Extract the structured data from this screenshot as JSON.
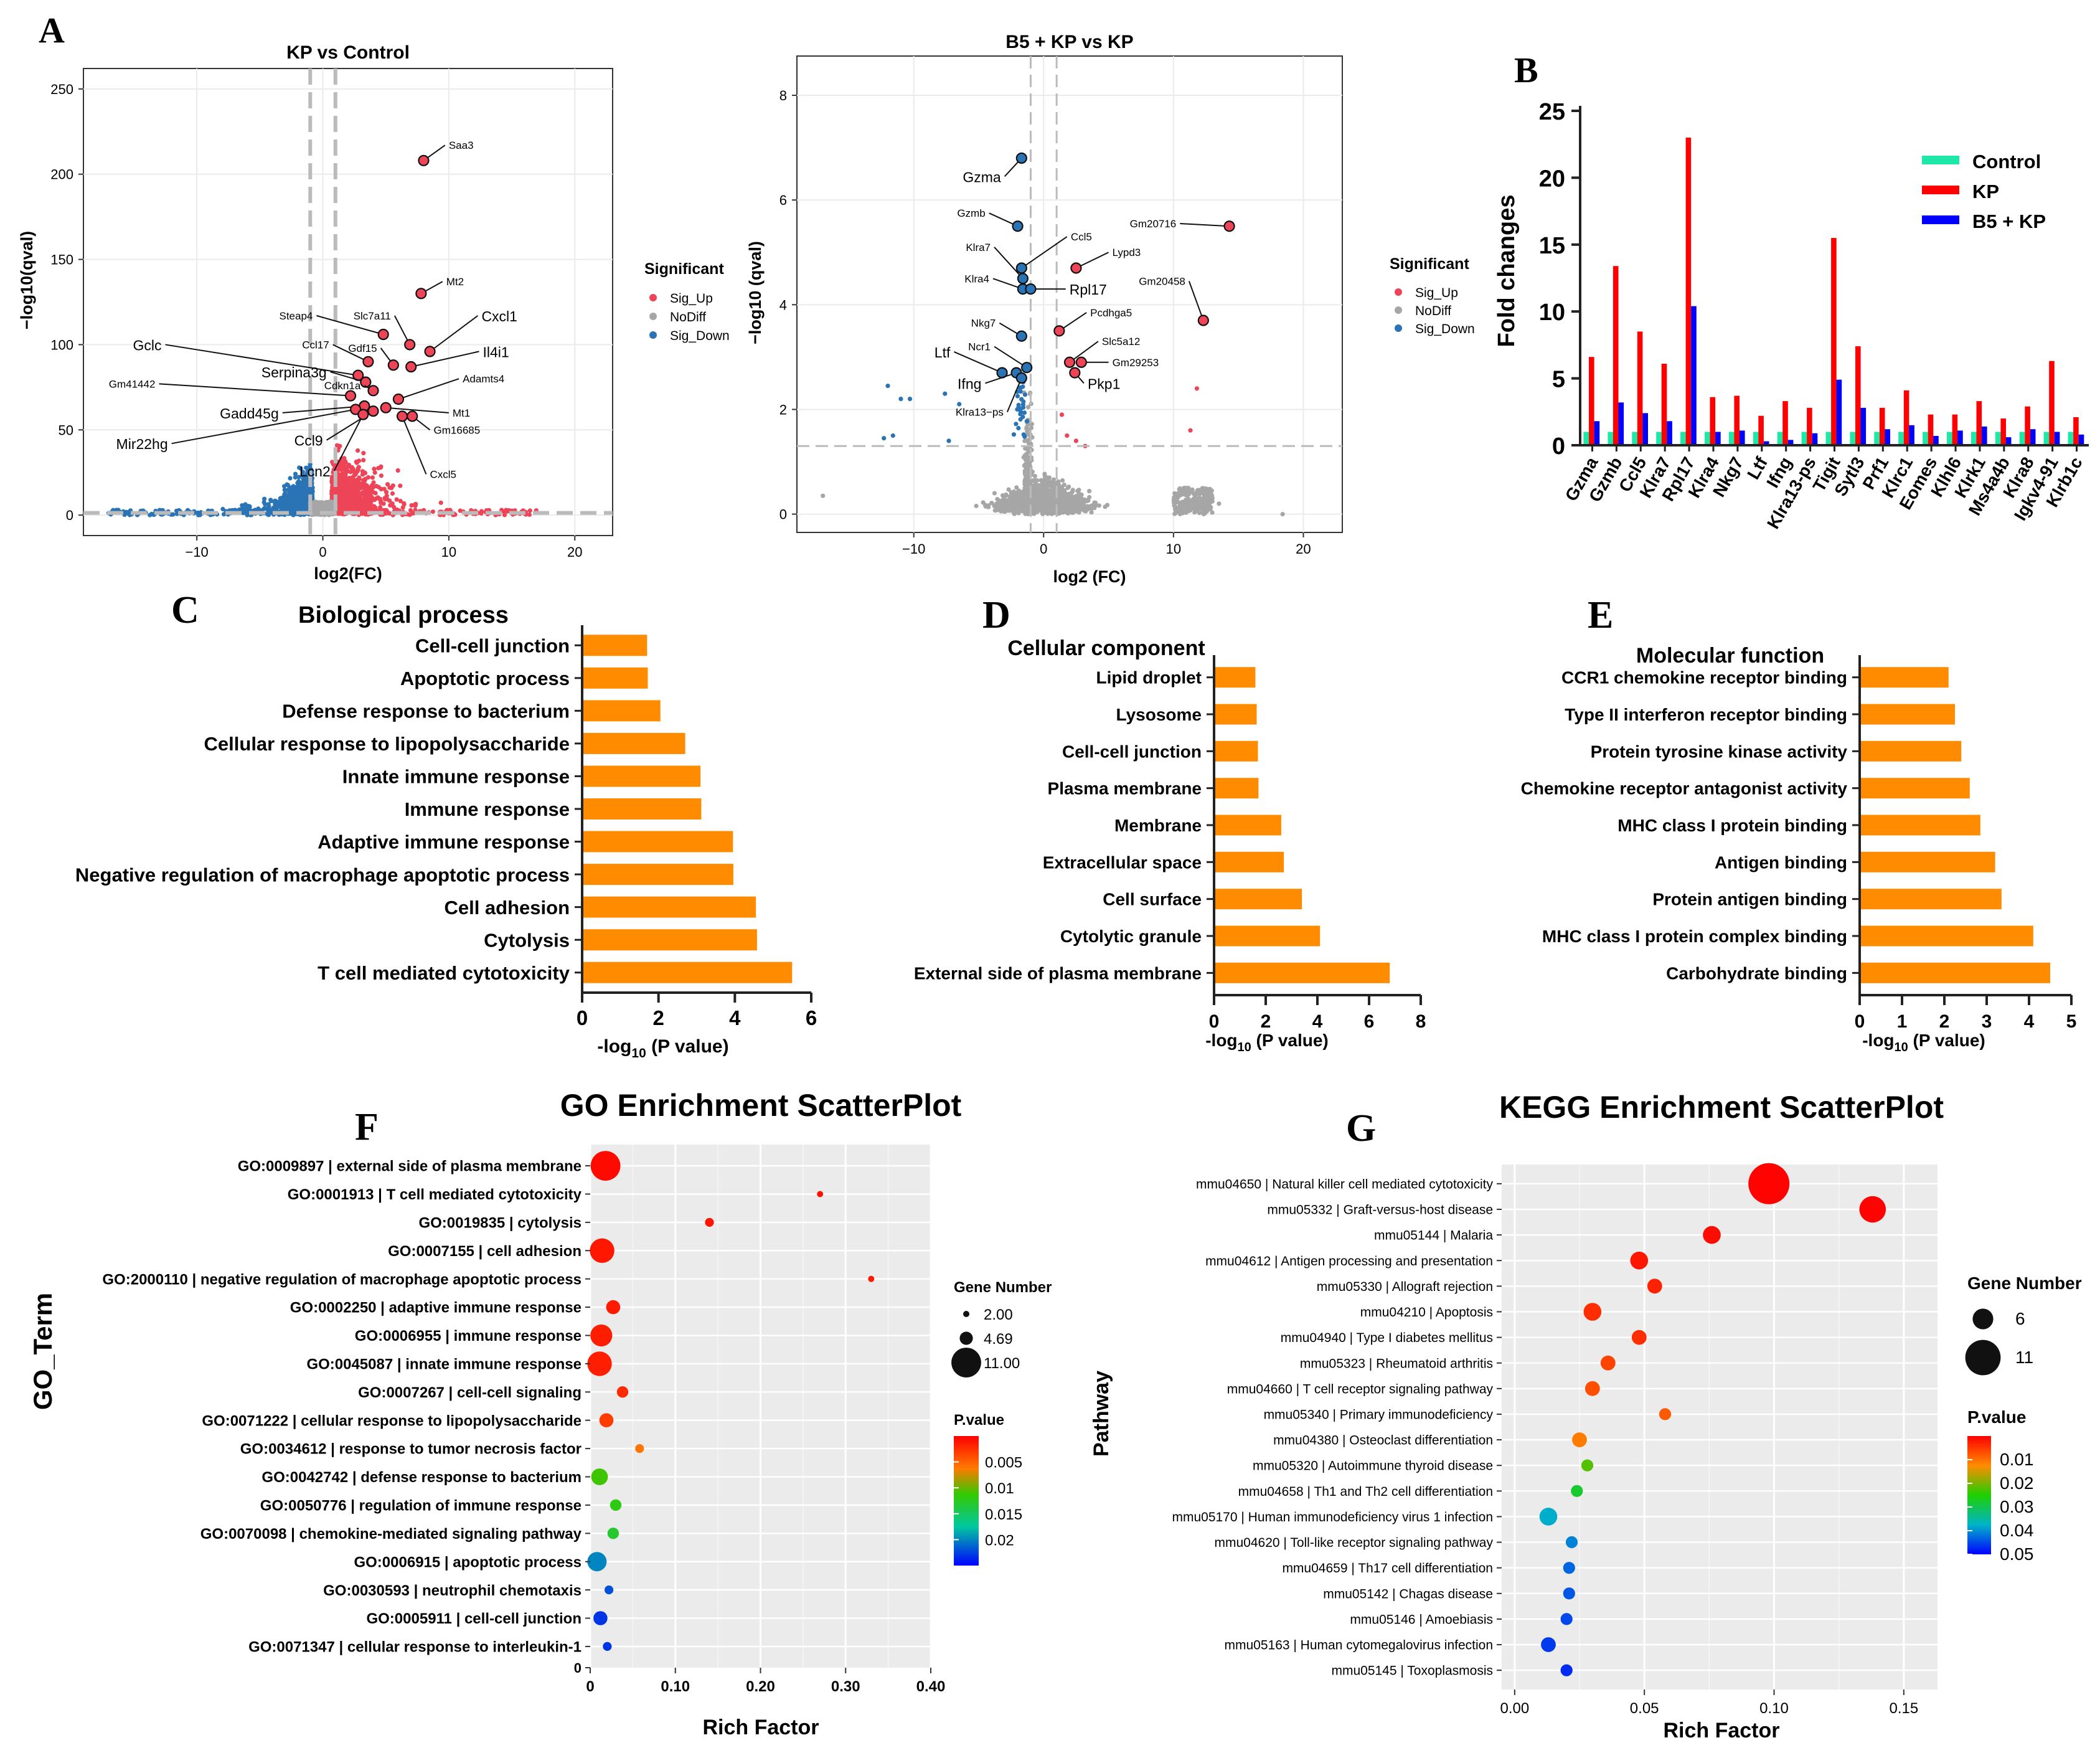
{
  "panel_letters": {
    "A": "A",
    "B": "B",
    "C": "C",
    "D": "D",
    "E": "E",
    "F": "F",
    "G": "G"
  },
  "colors": {
    "up": "#ee4457",
    "down": "#2a74b5",
    "nodiff": "#a6a6a6",
    "bar": "#ff8c00",
    "control": "#1ee8a8",
    "kp": "#ff0000",
    "b5kp": "#0000ff"
  },
  "chart_data": [
    {
      "id": "volcano1",
      "type": "scatter",
      "title": "KP vs Control",
      "xlabel": "log2(FC)",
      "ylabel": "−log10(qval)",
      "xlim": [
        -19,
        23
      ],
      "ylim": [
        -12,
        262
      ],
      "xticks": [
        -10,
        0,
        10,
        20
      ],
      "yticks": [
        0,
        50,
        100,
        150,
        200,
        250
      ],
      "fc_threshold": [
        -1,
        1
      ],
      "q_threshold": 1.3,
      "legend": {
        "title": "Significant",
        "entries": [
          "Sig_Up",
          "NoDiff",
          "Sig_Down"
        ]
      },
      "labels": [
        {
          "text": "Saa3",
          "x": 8.0,
          "y": 208,
          "lx": 9.7,
          "ly": 217,
          "big": false
        },
        {
          "text": "Mt2",
          "x": 7.8,
          "y": 130,
          "lx": 9.5,
          "ly": 137,
          "big": false
        },
        {
          "text": "Steap4",
          "x": 4.8,
          "y": 106,
          "lx": -0.5,
          "ly": 117,
          "big": false
        },
        {
          "text": "Slc7a11",
          "x": 6.9,
          "y": 100,
          "lx": 5.7,
          "ly": 117,
          "big": false
        },
        {
          "text": "Cxcl1",
          "x": 8.5,
          "y": 96,
          "lx": 12.3,
          "ly": 117,
          "big": true
        },
        {
          "text": "Ccl17",
          "x": 3.6,
          "y": 90,
          "lx": 0.8,
          "ly": 100,
          "big": false
        },
        {
          "text": "Gdf15",
          "x": 5.6,
          "y": 88,
          "lx": 4.6,
          "ly": 98,
          "big": false
        },
        {
          "text": "Il4i1",
          "x": 7.0,
          "y": 87,
          "lx": 12.4,
          "ly": 96,
          "big": true
        },
        {
          "text": "Gclc",
          "x": 2.8,
          "y": 82,
          "lx": -12.5,
          "ly": 100,
          "big": true
        },
        {
          "text": "Serpina3g",
          "x": 3.4,
          "y": 78,
          "lx": 0.6,
          "ly": 84,
          "big": true
        },
        {
          "text": "Cdkn1a",
          "x": 4.0,
          "y": 73,
          "lx": 3.3,
          "ly": 76,
          "big": false
        },
        {
          "text": "Gm41442",
          "x": 2.2,
          "y": 70,
          "lx": -13.0,
          "ly": 77,
          "big": false
        },
        {
          "text": "Adamts4",
          "x": 6.0,
          "y": 68,
          "lx": 10.8,
          "ly": 80,
          "big": false
        },
        {
          "text": "Gadd45g",
          "x": 3.3,
          "y": 64,
          "lx": -3.2,
          "ly": 60,
          "big": true
        },
        {
          "text": "Mt1",
          "x": 5.0,
          "y": 63,
          "lx": 10.0,
          "ly": 60,
          "big": false
        },
        {
          "text": "Gm16685",
          "x": 7.1,
          "y": 58,
          "lx": 8.5,
          "ly": 50,
          "big": false
        },
        {
          "text": "Mir22hg",
          "x": 2.6,
          "y": 62,
          "lx": -12.0,
          "ly": 42,
          "big": true
        },
        {
          "text": "Ccl9",
          "x": 4.0,
          "y": 61,
          "lx": 0.3,
          "ly": 44,
          "big": true
        },
        {
          "text": "Lcn2",
          "x": 3.2,
          "y": 59,
          "lx": 0.9,
          "ly": 26,
          "big": true
        },
        {
          "text": "Cxcl5",
          "x": 6.3,
          "y": 58,
          "lx": 8.2,
          "ly": 24,
          "big": false
        }
      ]
    },
    {
      "id": "volcano2",
      "type": "scatter",
      "title": "B5 + KP vs KP",
      "xlabel": "log2 (FC)",
      "ylabel": "−log10 (qval)",
      "xlim": [
        -19,
        23
      ],
      "ylim": [
        -0.35,
        8.75
      ],
      "xticks": [
        -10,
        0,
        10,
        20
      ],
      "yticks": [
        0,
        2,
        4,
        6,
        8
      ],
      "fc_threshold": [
        -1,
        1
      ],
      "q_threshold": 1.3,
      "legend": {
        "title": "Significant",
        "entries": [
          "Sig_Up",
          "NoDiff",
          "Sig_Down"
        ]
      },
      "labels": [
        {
          "text": "Gzma",
          "x": -1.7,
          "y": 6.8,
          "lx": -3.0,
          "ly": 6.45,
          "big": true
        },
        {
          "text": "Gm20716",
          "x": 14.3,
          "y": 5.5,
          "lx": 10.5,
          "ly": 5.55,
          "big": false
        },
        {
          "text": "Gzmb",
          "x": -2.0,
          "y": 5.5,
          "lx": -4.2,
          "ly": 5.75,
          "big": false
        },
        {
          "text": "Ccl5",
          "x": -1.7,
          "y": 4.7,
          "lx": 1.8,
          "ly": 5.3,
          "big": false
        },
        {
          "text": "Lypd3",
          "x": 2.5,
          "y": 4.7,
          "lx": 5.0,
          "ly": 5.0,
          "big": false
        },
        {
          "text": "Klra7",
          "x": -1.6,
          "y": 4.5,
          "lx": -3.8,
          "ly": 5.1,
          "big": false
        },
        {
          "text": "Gm20458",
          "x": 12.3,
          "y": 3.7,
          "lx": 11.2,
          "ly": 4.45,
          "big": false
        },
        {
          "text": "Klra4",
          "x": -1.6,
          "y": 4.3,
          "lx": -3.9,
          "ly": 4.5,
          "big": false
        },
        {
          "text": "Rpl17",
          "x": -1.0,
          "y": 4.3,
          "lx": 1.7,
          "ly": 4.3,
          "big": true
        },
        {
          "text": "Pcdhga5",
          "x": 1.2,
          "y": 3.5,
          "lx": 3.3,
          "ly": 3.85,
          "big": false
        },
        {
          "text": "Nkg7",
          "x": -1.7,
          "y": 3.4,
          "lx": -3.4,
          "ly": 3.65,
          "big": false
        },
        {
          "text": "Slc5a12",
          "x": 2.0,
          "y": 2.9,
          "lx": 4.2,
          "ly": 3.3,
          "big": false
        },
        {
          "text": "Ncr1",
          "x": -1.3,
          "y": 2.8,
          "lx": -3.8,
          "ly": 3.2,
          "big": false
        },
        {
          "text": "Ltf",
          "x": -3.2,
          "y": 2.7,
          "lx": -6.9,
          "ly": 3.1,
          "big": true
        },
        {
          "text": "Gm29253",
          "x": 2.9,
          "y": 2.9,
          "lx": 5.0,
          "ly": 2.9,
          "big": false
        },
        {
          "text": "Ifng",
          "x": -2.1,
          "y": 2.7,
          "lx": -4.5,
          "ly": 2.5,
          "big": true
        },
        {
          "text": "Pkp1",
          "x": 2.4,
          "y": 2.7,
          "lx": 3.1,
          "ly": 2.5,
          "big": true
        },
        {
          "text": "Klra13−ps",
          "x": -1.7,
          "y": 2.6,
          "lx": -2.8,
          "ly": 1.95,
          "big": false
        }
      ]
    },
    {
      "id": "barB",
      "type": "bar",
      "ylabel": "Fold changes",
      "ylim": [
        0,
        25
      ],
      "yticks": [
        0,
        5,
        10,
        15,
        20,
        25
      ],
      "categories": [
        "Gzma",
        "Gzmb",
        "Ccl5",
        "Klra7",
        "Rpl17",
        "Klra4",
        "Nkg7",
        "Ltf",
        "Ifng",
        "Klra13-ps",
        "Tigit",
        "Sytl3",
        "Prf1",
        "Klrc1",
        "Eomes",
        "Klhl6",
        "Klrk1",
        "Ms4a4b",
        "Klra8",
        "Igkv4-91",
        "Klrb1c"
      ],
      "series": [
        {
          "name": "Control",
          "values": [
            1,
            1,
            1,
            1,
            1,
            1,
            1,
            1,
            1,
            1,
            1,
            1,
            1,
            1,
            1,
            1,
            1,
            1,
            1,
            1,
            1
          ]
        },
        {
          "name": "KP",
          "values": [
            6.6,
            13.4,
            8.5,
            6.1,
            23.0,
            3.6,
            3.7,
            2.2,
            3.3,
            2.8,
            15.5,
            7.4,
            2.8,
            4.1,
            2.3,
            2.3,
            3.3,
            2.0,
            2.9,
            6.3,
            2.1
          ]
        },
        {
          "name": "B5 + KP",
          "values": [
            1.8,
            3.2,
            2.4,
            1.8,
            10.4,
            1.0,
            1.1,
            0.3,
            0.4,
            0.9,
            4.9,
            2.8,
            1.2,
            1.5,
            0.7,
            1.1,
            1.4,
            0.6,
            1.2,
            1.0,
            0.8
          ]
        }
      ],
      "legend": [
        "Control",
        "KP",
        "B5 + KP"
      ]
    },
    {
      "id": "barC",
      "type": "bar",
      "orientation": "horizontal",
      "title": "Biological process",
      "xlabel": "-log",
      "xlabel_sub": "10",
      "xlabel_tail": " (P value)",
      "xlim": [
        0,
        6
      ],
      "xticks": [
        0,
        2,
        4,
        6
      ],
      "categories": [
        "Cell-cell junction",
        "Apoptotic process",
        "Defense response to bacterium",
        "Cellular response to lipopolysaccharide",
        "Innate immune response",
        "Immune response",
        "Adaptive immune response",
        "Negative regulation of macrophage apoptotic process",
        "Cell adhesion",
        "Cytolysis",
        "T cell mediated cytotoxicity"
      ],
      "values": [
        1.7,
        1.72,
        2.05,
        2.7,
        3.1,
        3.12,
        3.95,
        3.96,
        4.55,
        4.58,
        5.5
      ]
    },
    {
      "id": "barD",
      "type": "bar",
      "orientation": "horizontal",
      "title": "Cellular component",
      "xlabel": "-log",
      "xlabel_sub": "10",
      "xlabel_tail": " (P value)",
      "xlim": [
        0,
        8
      ],
      "xticks": [
        0,
        2,
        4,
        6,
        8
      ],
      "categories": [
        "Lipid droplet",
        "Lysosome",
        "Cell-cell junction",
        "Plasma membrane",
        "Membrane",
        "Extracellular space",
        "Cell surface",
        "Cytolytic granule",
        "External side of plasma membrane"
      ],
      "values": [
        1.6,
        1.65,
        1.7,
        1.72,
        2.6,
        2.7,
        3.4,
        4.1,
        6.8
      ]
    },
    {
      "id": "barE",
      "type": "bar",
      "orientation": "horizontal",
      "title": "Molecular function",
      "xlabel": "-log",
      "xlabel_sub": "10",
      "xlabel_tail": " (P value)",
      "xlim": [
        0,
        5
      ],
      "xticks": [
        0,
        1,
        2,
        3,
        4,
        5
      ],
      "categories": [
        "CCR1 chemokine receptor binding",
        "Type II interferon receptor binding",
        "Protein tyrosine kinase activity",
        "Chemokine receptor antagonist activity",
        "MHC class I protein binding",
        "Antigen binding",
        "Protein antigen binding",
        "MHC class I protein complex binding",
        "Carbohydrate binding"
      ],
      "values": [
        2.1,
        2.25,
        2.4,
        2.6,
        2.85,
        3.2,
        3.35,
        4.1,
        4.5
      ]
    },
    {
      "id": "dotF",
      "type": "scatter",
      "title": "GO Enrichment ScatterPlot",
      "xlabel": "Rich Factor",
      "ylabel": "GO_Term",
      "xlim": [
        0,
        0.4
      ],
      "xticks": [
        0,
        0.1,
        0.2,
        0.3,
        0.4
      ],
      "xtick_labels": [
        "0",
        "0.10",
        "0.20",
        "0.30",
        "0.40"
      ],
      "points": [
        {
          "term": "GO:0009897 | external side of plasma membrane",
          "x": 0.018,
          "genes": 11,
          "p": 0.0005
        },
        {
          "term": "GO:0001913 | T cell mediated cytotoxicity",
          "x": 0.27,
          "genes": 2,
          "p": 0.0008
        },
        {
          "term": "GO:0019835 | cytolysis",
          "x": 0.14,
          "genes": 3,
          "p": 0.001
        },
        {
          "term": "GO:0007155 | cell adhesion",
          "x": 0.014,
          "genes": 9,
          "p": 0.0012
        },
        {
          "term": "GO:2000110 | negative regulation of macrophage apoptotic process",
          "x": 0.33,
          "genes": 2,
          "p": 0.0013
        },
        {
          "term": "GO:0002250 | adaptive immune response",
          "x": 0.027,
          "genes": 5,
          "p": 0.0014
        },
        {
          "term": "GO:0006955 | immune response",
          "x": 0.013,
          "genes": 8,
          "p": 0.0015
        },
        {
          "term": "GO:0045087 | innate immune response",
          "x": 0.011,
          "genes": 9,
          "p": 0.0016
        },
        {
          "term": "GO:0007267 | cell-cell signaling",
          "x": 0.038,
          "genes": 4,
          "p": 0.0022
        },
        {
          "term": "GO:0071222 | cellular response to lipopolysaccharide",
          "x": 0.019,
          "genes": 5,
          "p": 0.003
        },
        {
          "term": "GO:0034612 | response to tumor necrosis factor",
          "x": 0.058,
          "genes": 3,
          "p": 0.006
        },
        {
          "term": "GO:0042742 | defense response to bacterium",
          "x": 0.011,
          "genes": 6,
          "p": 0.011
        },
        {
          "term": "GO:0050776 | regulation of immune response",
          "x": 0.03,
          "genes": 4,
          "p": 0.012
        },
        {
          "term": "GO:0070098 | chemokine-mediated signaling pathway",
          "x": 0.027,
          "genes": 4,
          "p": 0.013
        },
        {
          "term": "GO:0006915 | apoptotic process",
          "x": 0.008,
          "genes": 7,
          "p": 0.02
        },
        {
          "term": "GO:0030593 | neutrophil chemotaxis",
          "x": 0.022,
          "genes": 3,
          "p": 0.022
        },
        {
          "term": "GO:0005911 | cell-cell junction",
          "x": 0.012,
          "genes": 5,
          "p": 0.023
        },
        {
          "term": "GO:0071347 | cellular response to interleukin-1",
          "x": 0.02,
          "genes": 3,
          "p": 0.023
        }
      ],
      "size_legend": {
        "title": "Gene Number",
        "entries": [
          "2.00",
          "4.69",
          "11.00"
        ],
        "values": [
          2,
          4.69,
          11
        ]
      },
      "color_legend": {
        "title": "P.value",
        "min": 0.0,
        "max": 0.025,
        "ticks": [
          "0.005",
          "0.01",
          "0.015",
          "0.02"
        ],
        "tick_values": [
          0.005,
          0.01,
          0.015,
          0.02
        ]
      }
    },
    {
      "id": "dotG",
      "type": "scatter",
      "title": "KEGG Enrichment ScatterPlot",
      "xlabel": "Rich Factor",
      "ylabel": "Pathway",
      "xlim": [
        -0.005,
        0.163
      ],
      "xticks": [
        0,
        0.05,
        0.1,
        0.15
      ],
      "xtick_labels": [
        "0.00",
        "0.05",
        "0.10",
        "0.15"
      ],
      "points": [
        {
          "term": "mmu04650 | Natural killer cell mediated cytotoxicity",
          "x": 0.098,
          "genes": 13,
          "p": 0.0003
        },
        {
          "term": "mmu05332 | Graft-versus-host disease",
          "x": 0.138,
          "genes": 8,
          "p": 0.0003
        },
        {
          "term": "mmu05144 | Malaria",
          "x": 0.076,
          "genes": 5,
          "p": 0.001
        },
        {
          "term": "mmu04612 | Antigen processing and presentation",
          "x": 0.048,
          "genes": 5,
          "p": 0.002
        },
        {
          "term": "mmu05330 | Allograft rejection",
          "x": 0.054,
          "genes": 4,
          "p": 0.003
        },
        {
          "term": "mmu04210 | Apoptosis",
          "x": 0.03,
          "genes": 5,
          "p": 0.004
        },
        {
          "term": "mmu04940 | Type I diabetes mellitus",
          "x": 0.048,
          "genes": 4,
          "p": 0.004
        },
        {
          "term": "mmu05323 | Rheumatoid arthritis",
          "x": 0.036,
          "genes": 4,
          "p": 0.006
        },
        {
          "term": "mmu04660 | T cell receptor signaling pathway",
          "x": 0.03,
          "genes": 4,
          "p": 0.007
        },
        {
          "term": "mmu05340 | Primary immunodeficiency",
          "x": 0.058,
          "genes": 3,
          "p": 0.008
        },
        {
          "term": "mmu04380 | Osteoclast differentiation",
          "x": 0.025,
          "genes": 4,
          "p": 0.011
        },
        {
          "term": "mmu05320 | Autoimmune thyroid disease",
          "x": 0.028,
          "genes": 3,
          "p": 0.022
        },
        {
          "term": "mmu04658 | Th1 and Th2 cell differentiation",
          "x": 0.024,
          "genes": 3,
          "p": 0.028
        },
        {
          "term": "mmu05170 | Human immunodeficiency virus 1 infection",
          "x": 0.013,
          "genes": 5,
          "p": 0.038
        },
        {
          "term": "mmu04620 | Toll-like receptor signaling pathway",
          "x": 0.022,
          "genes": 3,
          "p": 0.041
        },
        {
          "term": "mmu04659 | Th17 cell differentiation",
          "x": 0.021,
          "genes": 3,
          "p": 0.043
        },
        {
          "term": "mmu05142 | Chagas disease",
          "x": 0.021,
          "genes": 3,
          "p": 0.044
        },
        {
          "term": "mmu05146 | Amoebiasis",
          "x": 0.02,
          "genes": 3,
          "p": 0.045
        },
        {
          "term": "mmu05163 | Human cytomegalovirus infection",
          "x": 0.013,
          "genes": 4,
          "p": 0.046
        },
        {
          "term": "mmu05145 | Toxoplasmosis",
          "x": 0.02,
          "genes": 3,
          "p": 0.047
        }
      ],
      "size_legend": {
        "title": "Gene Number",
        "entries": [
          "6",
          "11"
        ],
        "values": [
          6,
          11
        ]
      },
      "color_legend": {
        "title": "P.value",
        "min": 0.0,
        "max": 0.05,
        "ticks": [
          "0.01",
          "0.02",
          "0.03",
          "0.04",
          "0.05"
        ],
        "tick_values": [
          0.01,
          0.02,
          0.03,
          0.04,
          0.05
        ]
      }
    }
  ]
}
